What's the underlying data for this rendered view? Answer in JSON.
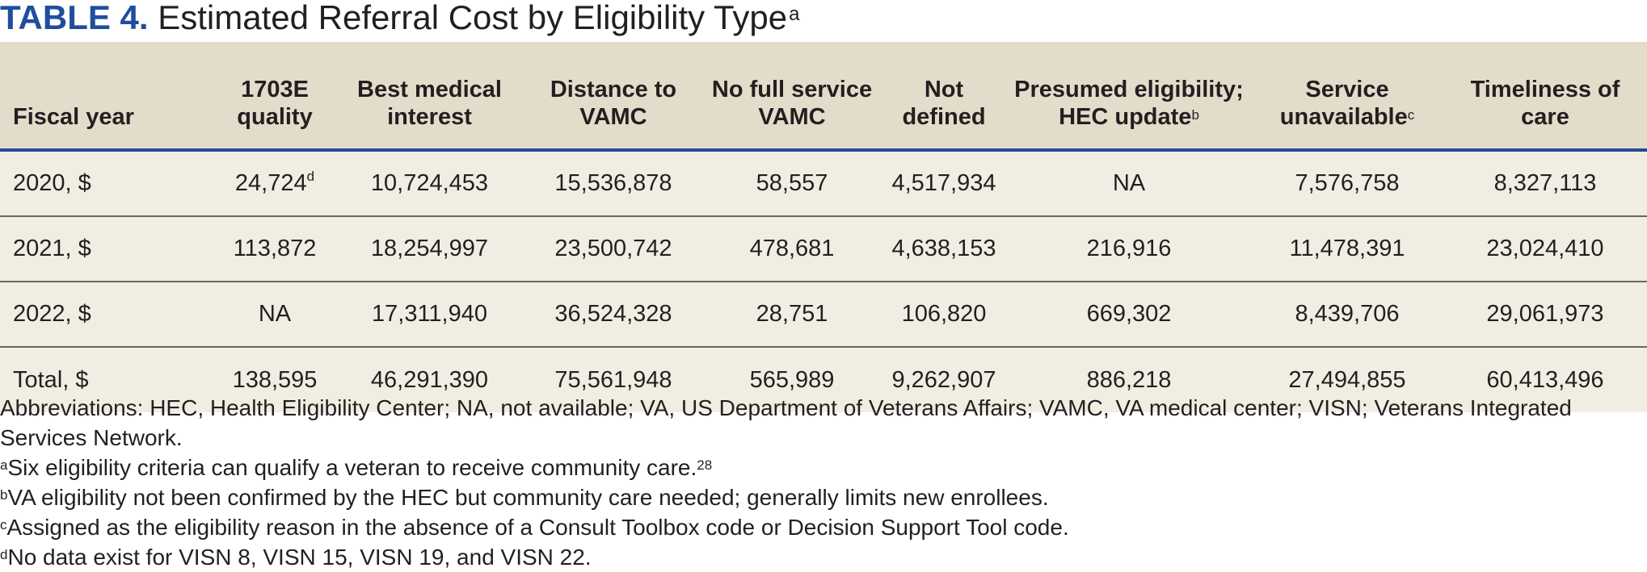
{
  "title": {
    "label": "TABLE 4.",
    "text": "Estimated Referral Cost by Eligibility Type",
    "footnote_mark": "a"
  },
  "columns": [
    {
      "text": "Fiscal year",
      "mark": ""
    },
    {
      "text": "1703E quality",
      "mark": ""
    },
    {
      "text": "Best medical interest",
      "mark": ""
    },
    {
      "text": "Distance to VAMC",
      "mark": ""
    },
    {
      "text": "No full service VAMC",
      "mark": ""
    },
    {
      "text": "Not defined",
      "mark": ""
    },
    {
      "text": "Presumed eligibility; HEC update",
      "mark": "b"
    },
    {
      "text": "Service unavailable",
      "mark": "c"
    },
    {
      "text": "Timeliness of care",
      "mark": ""
    }
  ],
  "rows": [
    {
      "cells": [
        "2020, $",
        "24,724",
        "10,724,453",
        "15,536,878",
        "58,557",
        "4,517,934",
        "NA",
        "7,576,758",
        "8,327,113"
      ],
      "marks": [
        "",
        "d",
        "",
        "",
        "",
        "",
        "",
        "",
        ""
      ]
    },
    {
      "cells": [
        "2021, $",
        "113,872",
        "18,254,997",
        "23,500,742",
        "478,681",
        "4,638,153",
        "216,916",
        "11,478,391",
        "23,024,410"
      ],
      "marks": [
        "",
        "",
        "",
        "",
        "",
        "",
        "",
        "",
        ""
      ]
    },
    {
      "cells": [
        "2022, $",
        "NA",
        "17,311,940",
        "36,524,328",
        "28,751",
        "106,820",
        "669,302",
        "8,439,706",
        "29,061,973"
      ],
      "marks": [
        "",
        "",
        "",
        "",
        "",
        "",
        "",
        "",
        ""
      ]
    },
    {
      "cells": [
        "Total, $",
        "138,595",
        "46,291,390",
        "75,561,948",
        "565,989",
        "9,262,907",
        "886,218",
        "27,494,855",
        "60,413,496"
      ],
      "marks": [
        "",
        "",
        "",
        "",
        "",
        "",
        "",
        "",
        ""
      ]
    }
  ],
  "notes": {
    "abbreviations": "Abbreviations: HEC, Health Eligibility Center; NA, not available; VA, US Department of Veterans Affairs; VAMC, VA medical center; VISN; Veterans Integrated Services Network.",
    "footnotes": [
      {
        "mark": "a",
        "text": "Six eligibility criteria can qualify a veteran to receive community care.",
        "ref": "28"
      },
      {
        "mark": "b",
        "text": "VA eligibility not been confirmed by the HEC but community care needed; generally limits new enrollees.",
        "ref": ""
      },
      {
        "mark": "c",
        "text": "Assigned as the eligibility reason in the absence of a Consult Toolbox code or Decision Support Tool code.",
        "ref": ""
      },
      {
        "mark": "d",
        "text": "No data exist for VISN 8, VISN 15, VISN 19, and VISN 22.",
        "ref": ""
      }
    ]
  }
}
